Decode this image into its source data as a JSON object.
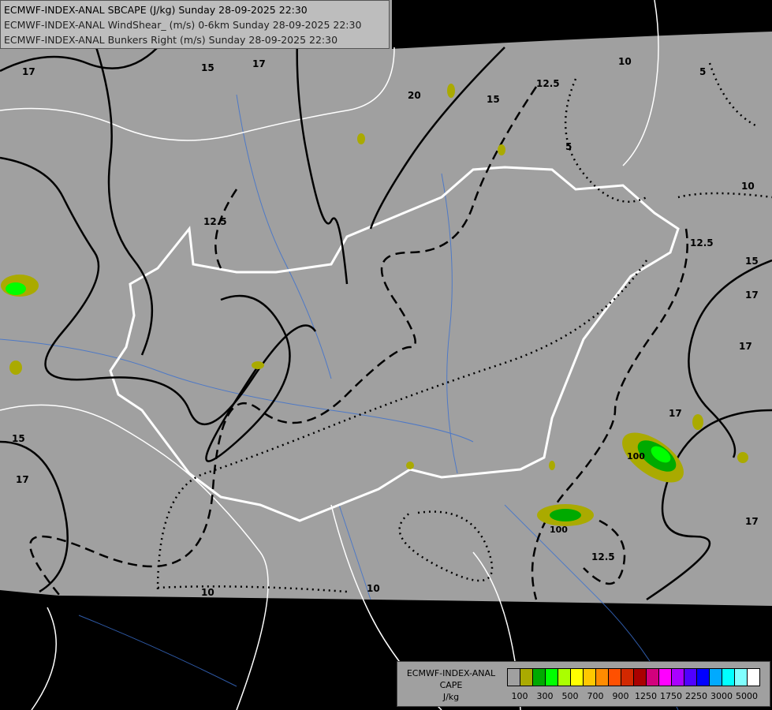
{
  "titles": [
    "ECMWF-INDEX-ANAL SBCAPE (J/kg) Sunday 28-09-2025 22:30",
    "ECMWF-INDEX-ANAL WindShear_ (m/s) 0-6km Sunday 28-09-2025 22:30",
    "ECMWF-INDEX-ANAL Bunkers Right (m/s) Sunday 28-09-2025 22:30"
  ],
  "legend": {
    "title_lines": [
      "ECMWF-INDEX-ANAL",
      "CAPE",
      "J/kg"
    ],
    "colors": [
      "#a0a0a0",
      "#aaaa00",
      "#00aa00",
      "#00ff00",
      "#aaff00",
      "#ffff00",
      "#ffc800",
      "#ff8c00",
      "#ff5000",
      "#d22800",
      "#aa0000",
      "#d2007d",
      "#ff00ff",
      "#aa00ff",
      "#5000ff",
      "#0000ff",
      "#00aaff",
      "#00ffff",
      "#80ffff",
      "#ffffff"
    ],
    "tick_labels": [
      "100",
      "300",
      "500",
      "700",
      "900",
      "1250",
      "1750",
      "2250",
      "3000",
      "5000"
    ]
  },
  "contour_labels": {
    "shear": [
      "17",
      "15",
      "17",
      "20",
      "15",
      "12.5",
      "10",
      "5",
      "5",
      "10",
      "12.5",
      "15",
      "17",
      "17",
      "17",
      "17",
      "15",
      "17",
      "12.5",
      "12.5",
      "10",
      "10"
    ],
    "cape": [
      "100",
      "100"
    ]
  }
}
